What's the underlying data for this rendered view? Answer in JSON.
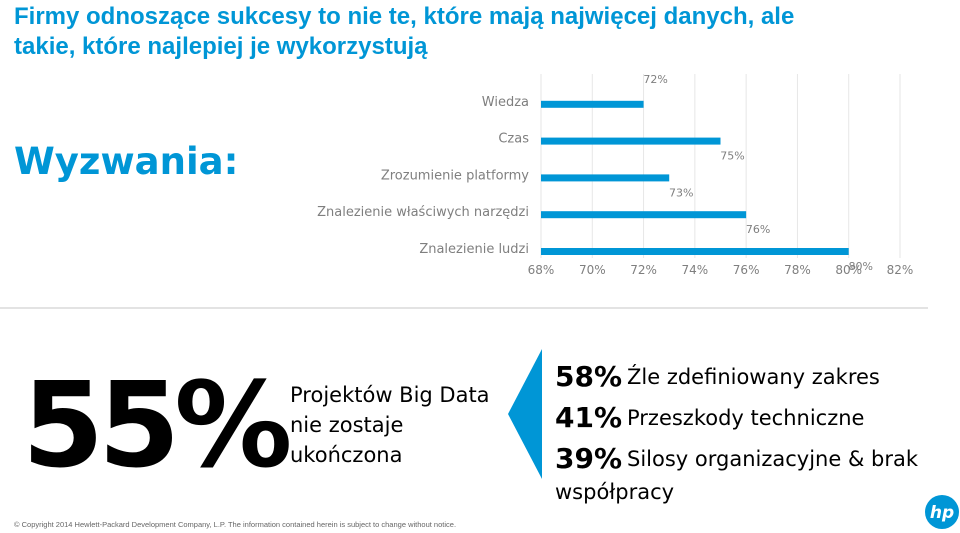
{
  "title_lines": [
    "Firmy odnoszące sukcesy to nie te, które mają najwięcej danych, ale",
    "takie, które najlepiej je wykorzystują"
  ],
  "heading": "Wyzwania:",
  "chart_data": {
    "type": "bar",
    "orientation": "horizontal",
    "categories": [
      "Wiedza",
      "Czas",
      "Zrozumienie platformy",
      "Znalezienie właściwych narzędzi",
      "Znalezienie ludzi"
    ],
    "values": [
      72,
      75,
      73,
      76,
      80
    ],
    "value_labels": [
      "72%",
      "75%",
      "73%",
      "76%",
      "80%"
    ],
    "xlim": [
      68,
      82
    ],
    "ticks": [
      "68%",
      "70%",
      "72%",
      "74%",
      "76%",
      "78%",
      "80%",
      "82%"
    ],
    "color": "#0096d6",
    "grid": true
  },
  "big_stat": {
    "value": "55%",
    "desc_lines": [
      "Projektów Big Data",
      "nie zostaje",
      "ukończona"
    ]
  },
  "reasons": [
    {
      "pct": "58%",
      "text": "Źle zdefiniowany zakres"
    },
    {
      "pct": "41%",
      "text": "Przeszkody techniczne"
    },
    {
      "pct": "39%",
      "text": "Silosy organizacyjne & brak"
    }
  ],
  "reason_continuation": "współpracy",
  "copyright": "© Copyright 2014 Hewlett-Packard Development Company, L.P. The information contained herein is subject to change without notice.",
  "logo_text": "hp",
  "colors": {
    "accent": "#0096d6"
  }
}
